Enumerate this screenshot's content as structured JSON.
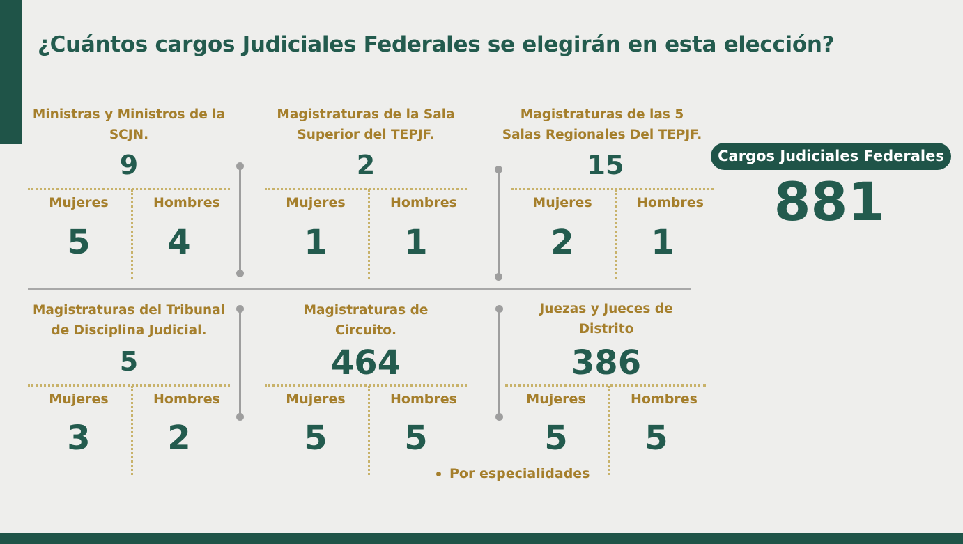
{
  "title": "¿Cuántos cargos Judiciales Federales se elegirán en esta elección?",
  "summary": {
    "badge_label": "Cargos Judiciales Federales",
    "total": "881"
  },
  "blocks": [
    {
      "title_line1": "Ministras y Ministros de la",
      "title_line2": "SCJN.",
      "total": "9",
      "women_label": "Mujeres",
      "men_label": "Hombres",
      "women": "5",
      "men": "4"
    },
    {
      "title_line1": "Magistraturas de la Sala",
      "title_line2": "Superior del TEPJF.",
      "total": "2",
      "women_label": "Mujeres",
      "men_label": "Hombres",
      "women": "1",
      "men": "1"
    },
    {
      "title_line1": "Magistraturas de las 5",
      "title_line2": "Salas Regionales Del TEPJF.",
      "total": "15",
      "women_label": "Mujeres",
      "men_label": "Hombres",
      "women": "2",
      "men": "1"
    },
    {
      "title_line1": "Magistraturas del Tribunal",
      "title_line2": "de Disciplina Judicial.",
      "total": "5",
      "women_label": "Mujeres",
      "men_label": "Hombres",
      "women": "3",
      "men": "2"
    },
    {
      "title_line1": "Magistraturas de",
      "title_line2": "Circuito.",
      "total": "464",
      "women_label": "Mujeres",
      "men_label": "Hombres",
      "women": "5",
      "men": "5"
    },
    {
      "title_line1": "Juezas y Jueces de",
      "title_line2": "Distrito",
      "total": "386",
      "women_label": "Mujeres",
      "men_label": "Hombres",
      "women": "5",
      "men": "5"
    }
  ],
  "note": "Por especialidades",
  "colors": {
    "primary": "#235b4e",
    "gold": "#a57f2c",
    "background": "#eeeeec",
    "dotted": "#c8b26a",
    "separator": "#9e9e9e"
  }
}
